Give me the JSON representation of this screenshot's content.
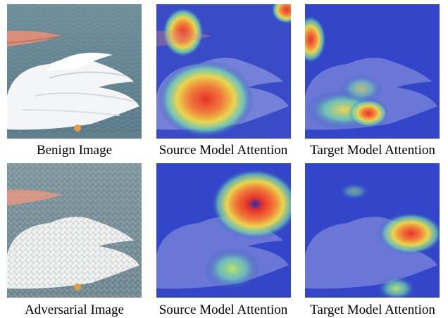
{
  "figure": {
    "rows": [
      {
        "panels": [
          {
            "caption": "Benign Image",
            "kind": "photo",
            "noise": false
          },
          {
            "caption": "Source Model Attention",
            "kind": "attention",
            "hotspots": [
              "head",
              "body",
              "top-right-corner"
            ]
          },
          {
            "caption": "Target Model Attention",
            "kind": "attention",
            "hotspots": [
              "head",
              "body-lower"
            ]
          }
        ]
      },
      {
        "panels": [
          {
            "caption": "Adversarial Image",
            "kind": "photo",
            "noise": true
          },
          {
            "caption": "Source Model Attention",
            "kind": "attention",
            "hotspots": [
              "top-right-red",
              "lower-left-cyan"
            ]
          },
          {
            "caption": "Target Model Attention",
            "kind": "attention",
            "hotspots": [
              "right-middle-red",
              "bottom-cyan"
            ]
          }
        ]
      }
    ],
    "colors": {
      "water": "#5e7f8f",
      "swan": "#f4f5f6",
      "bill": "#d98e7a",
      "attention_base": "#2b3fbf",
      "hot": "#e8322a"
    }
  }
}
